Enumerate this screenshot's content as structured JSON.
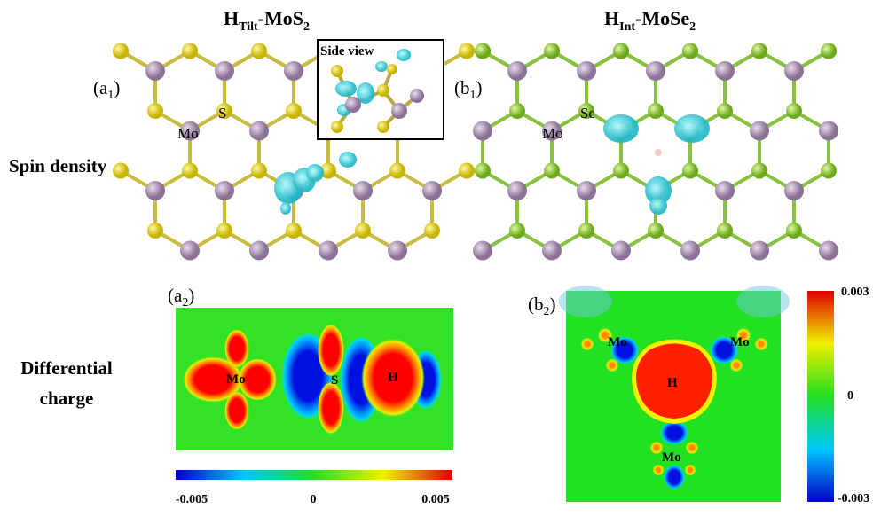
{
  "titles": [
    {
      "main": "H",
      "sub": "Tilt",
      "rest": "-MoS",
      "sub2": "2"
    },
    {
      "main": "H",
      "sub": "Int",
      "rest": "-MoSe",
      "sub2": "2"
    }
  ],
  "panel_labels": [
    {
      "letter": "(a",
      "sub": "1",
      "close": ")"
    },
    {
      "letter": "(b",
      "sub": "1",
      "close": ")"
    },
    {
      "letter": "(a",
      "sub": "2",
      "close": ")"
    },
    {
      "letter": "(b",
      "sub": "2",
      "close": ")"
    }
  ],
  "row_labels": {
    "spin": "Spin density",
    "charge": [
      "Differential",
      "charge"
    ]
  },
  "inset": "Side view",
  "atom_labels": {
    "a1": [
      "S",
      "Mo"
    ],
    "b1": [
      "Se",
      "Mo"
    ],
    "a2": [
      "Mo",
      "S",
      "H"
    ],
    "b2": [
      "Mo",
      "Mo",
      "H",
      "Mo"
    ]
  },
  "colorbars": [
    {
      "ticks": [
        "-0.005",
        "0",
        "0.005"
      ]
    },
    {
      "ticks": [
        "0.003",
        "0",
        "-0.003"
      ]
    }
  ]
}
